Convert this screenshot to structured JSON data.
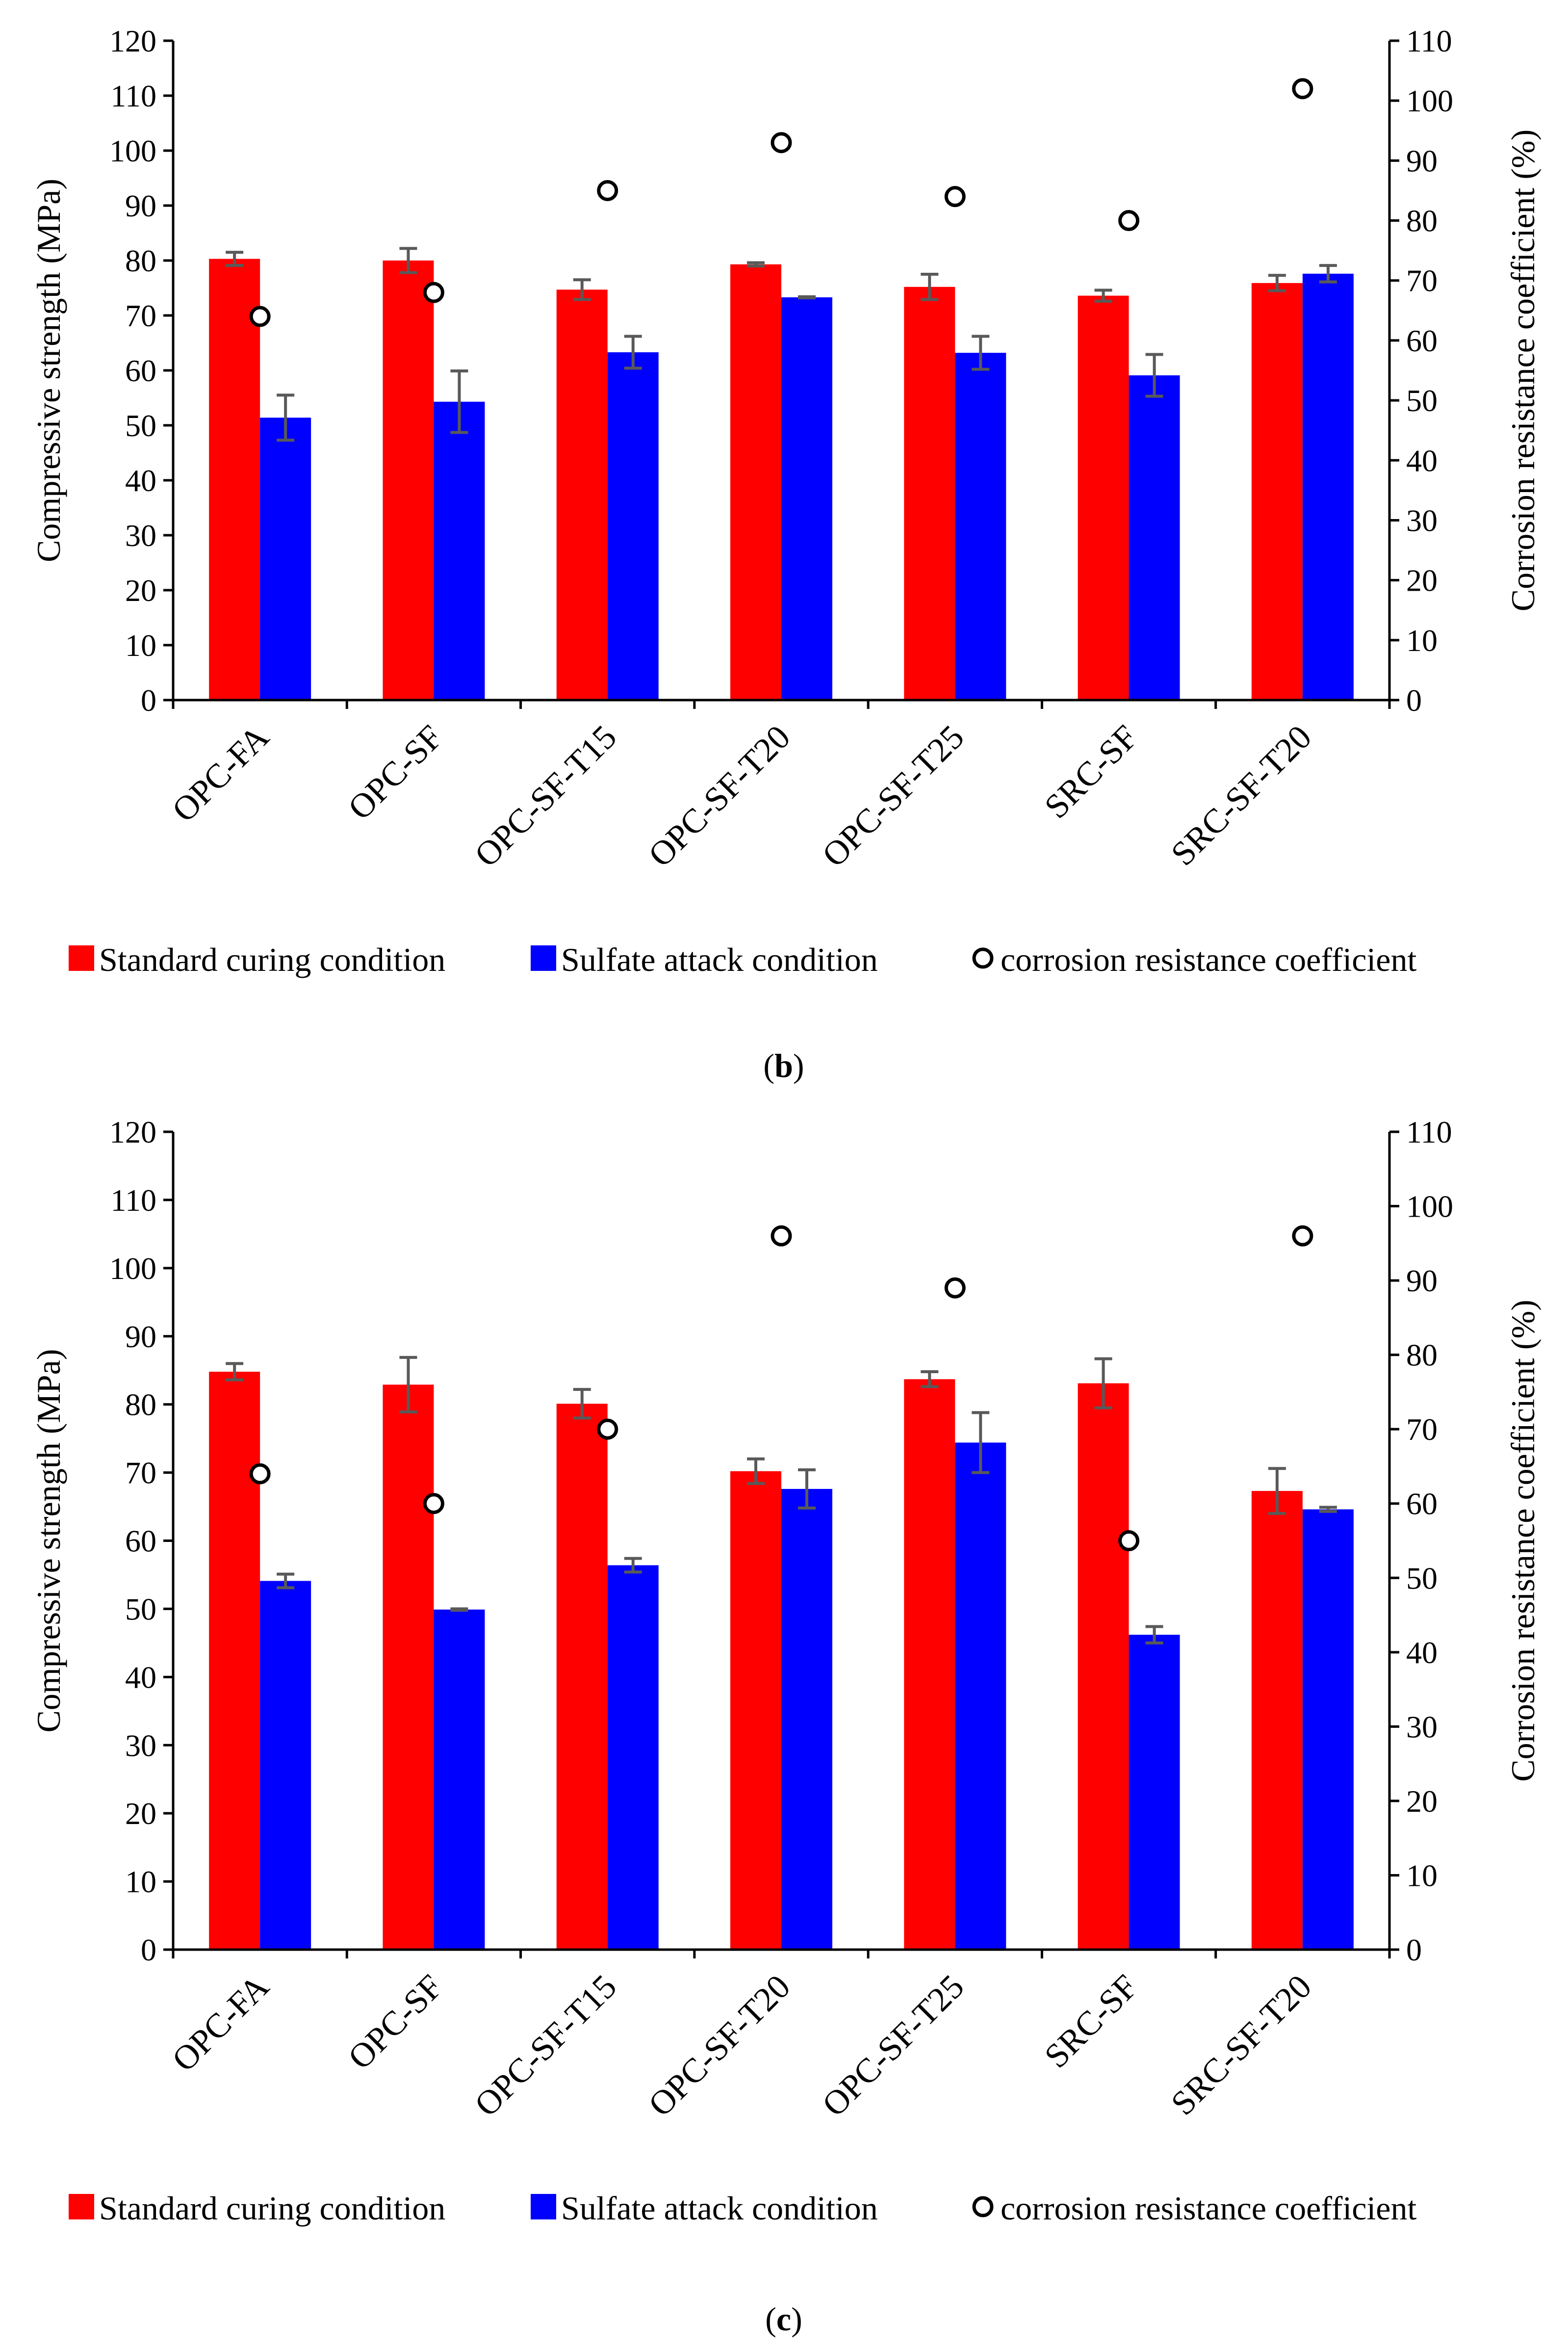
{
  "charts": [
    {
      "panel_open": "(",
      "panel": "b",
      "panel_close": ")",
      "chart_data": {
        "type": "bar",
        "categories": [
          "OPC-FA",
          "OPC-SF",
          "OPC-SF-T15",
          "OPC-SF-T20",
          "OPC-SF-T25",
          "SRC-SF",
          "SRC-SF-T20"
        ],
        "series": [
          {
            "name": "Standard curing condition",
            "color": "#ff0000",
            "values": [
              80.3,
              80.0,
              74.7,
              79.3,
              75.2,
              73.6,
              75.9
            ],
            "errors": [
              1.2,
              2.2,
              1.8,
              0.3,
              2.3,
              1.0,
              1.4
            ]
          },
          {
            "name": "Sulfate attack condition",
            "color": "#0000ff",
            "values": [
              51.4,
              54.3,
              63.3,
              73.3,
              63.2,
              59.1,
              77.6
            ],
            "errors": [
              4.1,
              5.6,
              2.9,
              0.1,
              3.0,
              3.8,
              1.5
            ]
          }
        ],
        "secondary_series": {
          "name": "corrosion resistance coefficient",
          "values": [
            64,
            68,
            85,
            93,
            84,
            80,
            102
          ]
        },
        "ylabel": "Compressive strength (MPa)",
        "ylabel2": "Corrosion resistance coefficient (%)",
        "ylim": [
          0,
          120
        ],
        "ylim2": [
          0,
          110
        ],
        "yticks": [
          0,
          10,
          20,
          30,
          40,
          50,
          60,
          70,
          80,
          90,
          100,
          110,
          120
        ],
        "yticks2": [
          0,
          10,
          20,
          30,
          40,
          50,
          60,
          70,
          80,
          90,
          100,
          110
        ],
        "legend_position": "bottom",
        "grid": false
      }
    },
    {
      "panel_open": "(",
      "panel": "c",
      "panel_close": ")",
      "chart_data": {
        "type": "bar",
        "categories": [
          "OPC-FA",
          "OPC-SF",
          "OPC-SF-T15",
          "OPC-SF-T20",
          "OPC-SF-T25",
          "SRC-SF",
          "SRC-SF-T20"
        ],
        "series": [
          {
            "name": "Standard curing condition",
            "color": "#ff0000",
            "values": [
              84.8,
              82.9,
              80.1,
              70.2,
              83.7,
              83.1,
              67.3
            ],
            "errors": [
              1.2,
              4.0,
              2.1,
              1.8,
              1.1,
              3.6,
              3.3
            ]
          },
          {
            "name": "Sulfate attack condition",
            "color": "#0000ff",
            "values": [
              54.1,
              49.9,
              56.4,
              67.6,
              74.4,
              46.2,
              64.6
            ],
            "errors": [
              1.0,
              0.1,
              1.0,
              2.8,
              4.4,
              1.2,
              0.3
            ]
          }
        ],
        "secondary_series": {
          "name": "corrosion resistance coefficient",
          "values": [
            64,
            60,
            70,
            96,
            89,
            55,
            96
          ]
        },
        "ylabel": "Compressive strength (MPa)",
        "ylabel2": "Corrosion resistance coefficient (%)",
        "ylim": [
          0,
          120
        ],
        "ylim2": [
          0,
          110
        ],
        "yticks": [
          0,
          10,
          20,
          30,
          40,
          50,
          60,
          70,
          80,
          90,
          100,
          110,
          120
        ],
        "yticks2": [
          0,
          10,
          20,
          30,
          40,
          50,
          60,
          70,
          80,
          90,
          100,
          110
        ],
        "legend_position": "bottom",
        "grid": false
      }
    }
  ]
}
